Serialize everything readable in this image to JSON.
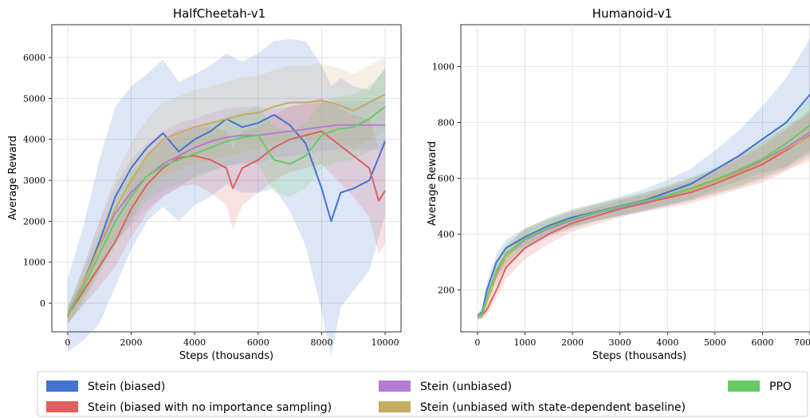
{
  "chart_data": [
    {
      "type": "line",
      "title": "HalfCheetah-v1",
      "xlabel": "Steps (thousands)",
      "ylabel": "Average Reward",
      "xlim": [
        -500,
        10500
      ],
      "ylim": [
        -700,
        6800
      ],
      "xticks": [
        0,
        2000,
        4000,
        6000,
        8000,
        10000
      ],
      "yticks": [
        0,
        1000,
        2000,
        3000,
        4000,
        5000,
        6000
      ],
      "grid": true,
      "series": [
        {
          "name": "Stein (biased)",
          "color": "#4472d4",
          "x": [
            0,
            500,
            1000,
            1500,
            2000,
            2500,
            3000,
            3500,
            4000,
            4500,
            5000,
            5500,
            6000,
            6500,
            7000,
            7500,
            8000,
            8300,
            8600,
            9000,
            9500,
            10000
          ],
          "y": [
            -300,
            500,
            1500,
            2600,
            3300,
            3800,
            4150,
            3700,
            4000,
            4200,
            4500,
            4300,
            4400,
            4600,
            4350,
            3900,
            2800,
            2000,
            2700,
            2800,
            3000,
            3950
          ],
          "band": [
            900,
            1400,
            2000,
            2200,
            2000,
            1800,
            1800,
            1700,
            1600,
            1600,
            1600,
            1600,
            1700,
            1800,
            2100,
            2500,
            3000,
            3300,
            2800,
            2500,
            2200,
            1800
          ]
        },
        {
          "name": "Stein (biased with no importance sampling)",
          "color": "#e06060",
          "x": [
            0,
            500,
            1000,
            1500,
            2000,
            2500,
            3000,
            3500,
            4000,
            4500,
            5000,
            5200,
            5500,
            6000,
            6500,
            7000,
            7500,
            8000,
            8500,
            9000,
            9500,
            9800,
            10000
          ],
          "y": [
            -300,
            300,
            900,
            1500,
            2300,
            2900,
            3300,
            3550,
            3600,
            3500,
            3300,
            2800,
            3300,
            3500,
            3800,
            4000,
            4100,
            4200,
            3900,
            3600,
            3300,
            2500,
            2750
          ],
          "band": [
            200,
            350,
            500,
            600,
            700,
            700,
            700,
            700,
            700,
            800,
            900,
            1000,
            900,
            800,
            800,
            800,
            800,
            800,
            900,
            1000,
            1200,
            1300,
            1300
          ]
        },
        {
          "name": "Stein (unbiased)",
          "color": "#b57cd0",
          "x": [
            0,
            500,
            1000,
            1500,
            2000,
            2500,
            3000,
            3500,
            4000,
            4500,
            5000,
            5500,
            6000,
            6500,
            7000,
            7500,
            8000,
            8500,
            9000,
            9500,
            10000
          ],
          "y": [
            -300,
            500,
            1400,
            2200,
            2700,
            3100,
            3400,
            3600,
            3800,
            3950,
            4050,
            4100,
            4100,
            4150,
            4200,
            4250,
            4300,
            4350,
            4350,
            4350,
            4350
          ],
          "band": [
            200,
            400,
            600,
            700,
            800,
            800,
            800,
            800,
            700,
            700,
            700,
            700,
            700,
            600,
            600,
            600,
            600,
            600,
            600,
            600,
            600
          ]
        },
        {
          "name": "Stein (unbiased with state-dependent baseline)",
          "color": "#c8ab63",
          "x": [
            0,
            500,
            1000,
            1500,
            2000,
            2500,
            3000,
            3500,
            4000,
            4500,
            5000,
            5500,
            6000,
            6500,
            7000,
            7500,
            8000,
            8500,
            9000,
            9500,
            10000
          ],
          "y": [
            -350,
            500,
            1400,
            2300,
            3000,
            3600,
            4000,
            4150,
            4300,
            4400,
            4500,
            4600,
            4650,
            4800,
            4900,
            4900,
            4950,
            4850,
            4700,
            4900,
            5100
          ],
          "band": [
            200,
            400,
            600,
            800,
            900,
            900,
            900,
            900,
            900,
            900,
            900,
            900,
            900,
            900,
            900,
            900,
            900,
            900,
            900,
            900,
            900
          ]
        },
        {
          "name": "PPO",
          "color": "#66cc66",
          "x": [
            0,
            500,
            1000,
            1500,
            2000,
            2500,
            3000,
            3500,
            4000,
            4500,
            5000,
            5500,
            6000,
            6500,
            7000,
            7500,
            8000,
            8500,
            9000,
            9500,
            10000
          ],
          "y": [
            -300,
            400,
            1200,
            2000,
            2600,
            3100,
            3350,
            3500,
            3650,
            3800,
            3950,
            4050,
            4100,
            3500,
            3400,
            3600,
            4100,
            4250,
            4300,
            4500,
            4800
          ],
          "band": [
            200,
            400,
            500,
            600,
            600,
            600,
            600,
            600,
            600,
            600,
            600,
            600,
            700,
            800,
            800,
            800,
            800,
            800,
            800,
            800,
            900
          ]
        }
      ]
    },
    {
      "type": "line",
      "title": "Humanoid-v1",
      "xlabel": "Steps (thousands)",
      "ylabel": "Average Reward",
      "xlim": [
        -350,
        7000
      ],
      "ylim": [
        50,
        1150
      ],
      "xticks": [
        0,
        1000,
        2000,
        3000,
        4000,
        5000,
        6000,
        7000
      ],
      "yticks": [
        200,
        400,
        600,
        800,
        1000
      ],
      "grid": true,
      "series": [
        {
          "name": "Stein (biased)",
          "color": "#4472d4",
          "x": [
            0,
            100,
            200,
            400,
            600,
            1000,
            1500,
            2000,
            2500,
            3000,
            3500,
            4000,
            4500,
            5000,
            5500,
            6000,
            6500,
            7000
          ],
          "y": [
            105,
            120,
            200,
            300,
            350,
            390,
            430,
            460,
            480,
            500,
            520,
            550,
            580,
            630,
            680,
            740,
            800,
            900
          ],
          "band": [
            10,
            20,
            30,
            30,
            30,
            30,
            30,
            30,
            30,
            35,
            40,
            45,
            55,
            70,
            90,
            120,
            160,
            200
          ]
        },
        {
          "name": "Stein (biased with no importance sampling)",
          "color": "#e06060",
          "x": [
            0,
            100,
            200,
            400,
            600,
            1000,
            1500,
            2000,
            2500,
            3000,
            3500,
            4000,
            4500,
            5000,
            5500,
            6000,
            6500,
            7000
          ],
          "y": [
            105,
            110,
            130,
            200,
            280,
            350,
            400,
            440,
            465,
            490,
            510,
            530,
            550,
            580,
            615,
            650,
            700,
            755
          ],
          "band": [
            10,
            15,
            20,
            30,
            40,
            40,
            35,
            30,
            30,
            30,
            30,
            35,
            40,
            45,
            55,
            65,
            75,
            80
          ]
        },
        {
          "name": "Stein (unbiased)",
          "color": "#b57cd0",
          "x": [
            0,
            100,
            200,
            400,
            600,
            1000,
            1500,
            2000,
            2500,
            3000,
            3500,
            4000,
            4500,
            5000,
            5500,
            6000,
            6500,
            7000
          ],
          "y": [
            105,
            115,
            170,
            260,
            320,
            380,
            420,
            450,
            475,
            495,
            515,
            535,
            560,
            590,
            625,
            665,
            710,
            765
          ],
          "band": [
            10,
            15,
            25,
            30,
            35,
            35,
            30,
            30,
            30,
            30,
            30,
            35,
            40,
            45,
            55,
            65,
            75,
            80
          ]
        },
        {
          "name": "Stein (unbiased with state-dependent baseline)",
          "color": "#c8ab63",
          "x": [
            0,
            100,
            200,
            400,
            600,
            1000,
            1500,
            2000,
            2500,
            3000,
            3500,
            4000,
            4500,
            5000,
            5500,
            6000,
            6500,
            7000
          ],
          "y": [
            105,
            112,
            160,
            250,
            320,
            385,
            425,
            455,
            478,
            498,
            518,
            538,
            560,
            590,
            620,
            660,
            705,
            750
          ],
          "band": [
            10,
            15,
            25,
            30,
            35,
            35,
            30,
            30,
            30,
            30,
            30,
            35,
            40,
            45,
            55,
            65,
            75,
            90
          ]
        },
        {
          "name": "PPO",
          "color": "#66cc66",
          "x": [
            0,
            100,
            200,
            400,
            600,
            1000,
            1500,
            2000,
            2500,
            3000,
            3500,
            4000,
            4500,
            5000,
            5500,
            6000,
            6500,
            7000
          ],
          "y": [
            105,
            114,
            175,
            270,
            330,
            385,
            425,
            455,
            478,
            498,
            518,
            540,
            565,
            595,
            630,
            670,
            725,
            790
          ],
          "band": [
            10,
            15,
            25,
            30,
            35,
            35,
            30,
            30,
            30,
            30,
            30,
            35,
            40,
            45,
            55,
            65,
            80,
            100
          ]
        }
      ]
    }
  ],
  "legend": {
    "items": [
      {
        "label": "Stein (biased)",
        "color": "#4472d4"
      },
      {
        "label": "Stein (biased with no importance sampling)",
        "color": "#e06060"
      },
      {
        "label": "Stein (unbiased)",
        "color": "#b57cd0"
      },
      {
        "label": "Stein (unbiased with state-dependent baseline)",
        "color": "#c8ab63"
      },
      {
        "label": "PPO",
        "color": "#66cc66"
      }
    ]
  }
}
